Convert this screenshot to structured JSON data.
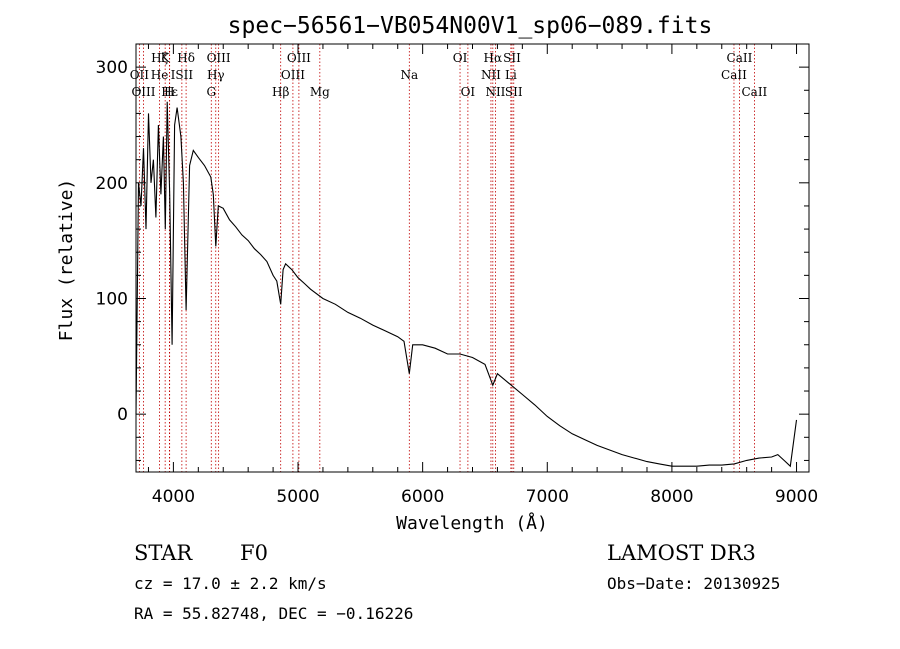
{
  "chart_data": {
    "type": "line",
    "title": "spec−56561−VB054N00V1_sp06−089.fits",
    "xlabel": "Wavelength (Å)",
    "ylabel": "Flux (relative)",
    "xlim": [
      3700,
      9100
    ],
    "ylim": [
      -50,
      320
    ],
    "xticks": [
      4000,
      5000,
      6000,
      7000,
      8000,
      9000
    ],
    "yticks": [
      0,
      100,
      200,
      300
    ],
    "x": [
      3700,
      3720,
      3740,
      3760,
      3780,
      3800,
      3820,
      3840,
      3860,
      3880,
      3900,
      3920,
      3935,
      3950,
      3970,
      3990,
      4010,
      4030,
      4060,
      4080,
      4102,
      4130,
      4160,
      4200,
      4250,
      4300,
      4320,
      4340,
      4360,
      4400,
      4450,
      4500,
      4550,
      4600,
      4650,
      4700,
      4750,
      4800,
      4830,
      4861,
      4880,
      4900,
      4950,
      5000,
      5050,
      5100,
      5200,
      5300,
      5400,
      5500,
      5600,
      5700,
      5800,
      5850,
      5893,
      5920,
      6000,
      6100,
      6200,
      6300,
      6400,
      6500,
      6563,
      6600,
      6700,
      6800,
      6900,
      7000,
      7100,
      7200,
      7300,
      7400,
      7500,
      7600,
      7700,
      7800,
      7900,
      8000,
      8100,
      8200,
      8300,
      8400,
      8500,
      8600,
      8700,
      8800,
      8850,
      8900,
      8950,
      9000
    ],
    "y": [
      0,
      200,
      180,
      230,
      160,
      260,
      200,
      220,
      170,
      250,
      190,
      240,
      160,
      270,
      190,
      60,
      250,
      265,
      240,
      200,
      90,
      215,
      228,
      222,
      215,
      205,
      190,
      145,
      180,
      178,
      168,
      162,
      155,
      150,
      143,
      138,
      132,
      120,
      115,
      95,
      125,
      130,
      125,
      118,
      113,
      108,
      100,
      95,
      88,
      83,
      77,
      72,
      67,
      63,
      35,
      60,
      60,
      57,
      52,
      52,
      49,
      43,
      25,
      35,
      26,
      17,
      8,
      -2,
      -10,
      -17,
      -22,
      -27,
      -31,
      -35,
      -38,
      -41,
      -43,
      -45,
      -45,
      -45,
      -44,
      -44,
      -43,
      -40,
      -38,
      -37,
      -35,
      -40,
      -45,
      -5
    ],
    "annotations": [
      {
        "label": "Hζ",
        "x": 3889,
        "row": 1
      },
      {
        "label": "OII",
        "x": 3727,
        "row": 2
      },
      {
        "label": "OIII",
        "x": 3760,
        "row": 3
      },
      {
        "label": "K",
        "x": 3934,
        "row": 1
      },
      {
        "label": "He",
        "x": 3889,
        "row": 2
      },
      {
        "label": "Hε",
        "x": 3970,
        "row": 3
      },
      {
        "label": "H",
        "x": 3968,
        "row": 3
      },
      {
        "label": "ISII",
        "x": 4068,
        "row": 2
      },
      {
        "label": "Hδ",
        "x": 4102,
        "row": 1
      },
      {
        "label": "OIII",
        "x": 4363,
        "row": 1
      },
      {
        "label": "Hγ",
        "x": 4340,
        "row": 2
      },
      {
        "label": "G",
        "x": 4304,
        "row": 3
      },
      {
        "label": "Hβ",
        "x": 4861,
        "row": 3
      },
      {
        "label": "OIII",
        "x": 5007,
        "row": 1
      },
      {
        "label": "OIII",
        "x": 4959,
        "row": 2
      },
      {
        "label": "Mg",
        "x": 5175,
        "row": 3
      },
      {
        "label": "Na",
        "x": 5893,
        "row": 2
      },
      {
        "label": "OI",
        "x": 6300,
        "row": 1
      },
      {
        "label": "OI",
        "x": 6363,
        "row": 3
      },
      {
        "label": "Hα",
        "x": 6563,
        "row": 1
      },
      {
        "label": "SII",
        "x": 6717,
        "row": 1
      },
      {
        "label": "NII",
        "x": 6548,
        "row": 2
      },
      {
        "label": "Li",
        "x": 6708,
        "row": 2
      },
      {
        "label": "NII",
        "x": 6584,
        "row": 3
      },
      {
        "label": "SII",
        "x": 6731,
        "row": 3
      },
      {
        "label": "CaII",
        "x": 8542,
        "row": 1
      },
      {
        "label": "CaII",
        "x": 8498,
        "row": 2
      },
      {
        "label": "CaII",
        "x": 8662,
        "row": 3
      }
    ],
    "line_positions": [
      3727,
      3760,
      3889,
      3934,
      3968,
      3970,
      4068,
      4102,
      4304,
      4340,
      4363,
      4861,
      4959,
      5007,
      5175,
      5893,
      6300,
      6363,
      6548,
      6563,
      6584,
      6708,
      6717,
      6731,
      8498,
      8542,
      8662
    ]
  },
  "footer": {
    "class_label": "STAR",
    "subclass": "F0",
    "survey": "LAMOST DR3",
    "redshift_text": "cz = 17.0 ± 2.2 km/s",
    "obs_date_text": "Obs−Date: 20130925",
    "coords_text": "RA =  55.82748, DEC =  −0.16226"
  },
  "colors": {
    "axis": "#000000",
    "spectrum": "#000000",
    "marker_line": "#c00000"
  }
}
